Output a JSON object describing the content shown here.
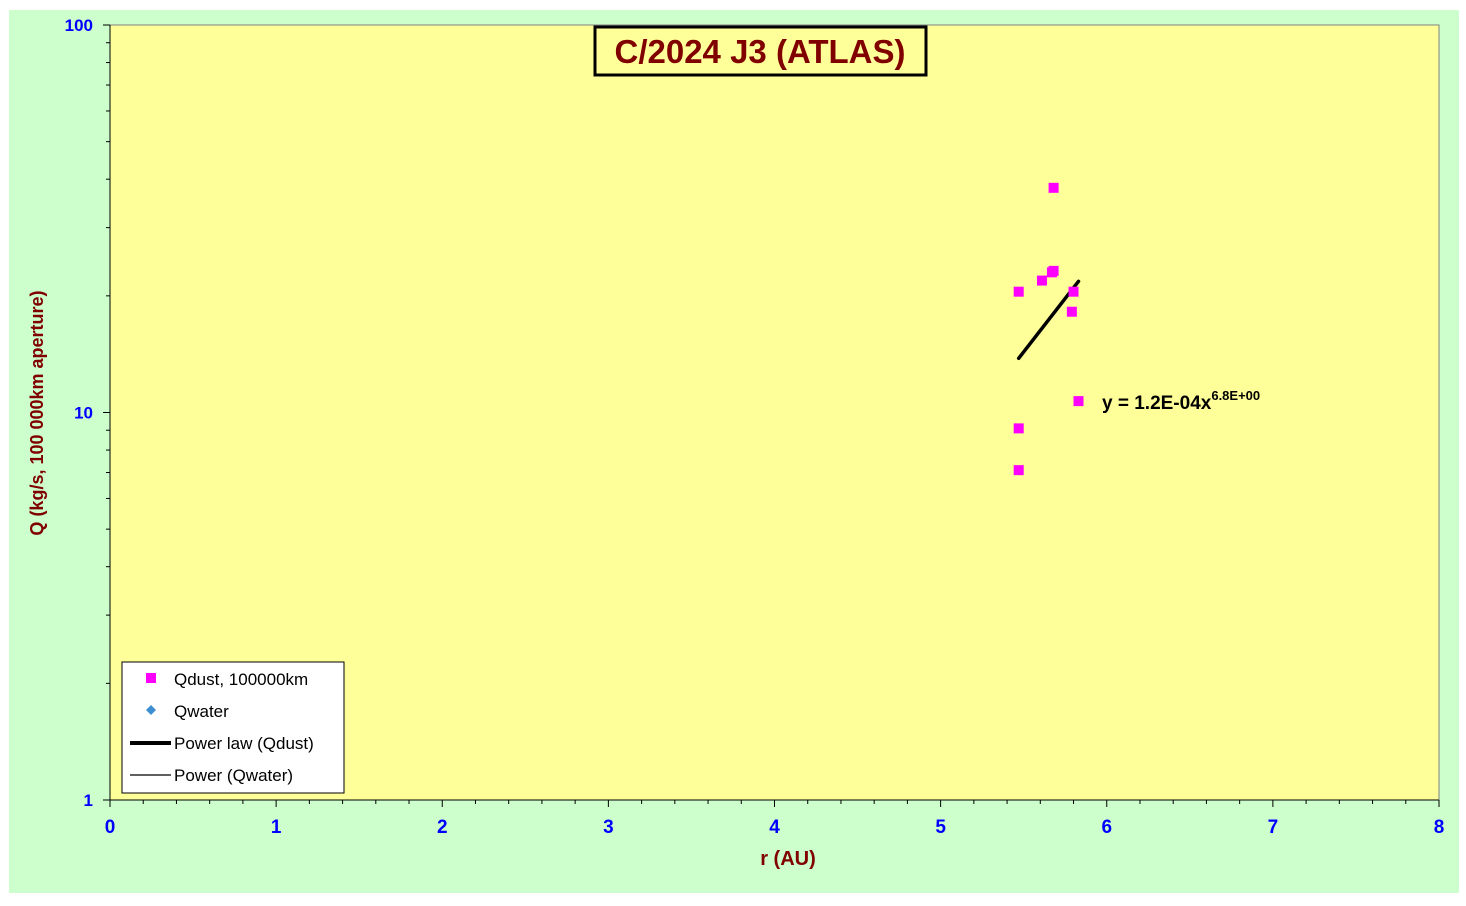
{
  "colors": {
    "outer_bg": "#ccffcc",
    "plot_bg": "#ffff99",
    "axis_text": "#0000ff",
    "label_text": "#800000",
    "dust_marker": "#ff00ff",
    "water_marker": "#3d8fd1",
    "line": "#000000"
  },
  "chart_data": {
    "type": "scatter",
    "title": "C/2024 J3 (ATLAS)",
    "xlabel": "r (AU)",
    "ylabel": "Q (kg/s, 100 000km aperture)",
    "xlim": [
      0,
      8
    ],
    "ylim": [
      1,
      100
    ],
    "yscale": "log",
    "x_ticks": [
      "0",
      "1",
      "2",
      "3",
      "4",
      "5",
      "6",
      "7",
      "8"
    ],
    "y_ticks": [
      "1",
      "10",
      "100"
    ],
    "grid": false,
    "legend_position": "bottom-left",
    "series": [
      {
        "name": "Qdust, 100000km",
        "marker": "square",
        "points": [
          [
            5.47,
            20.5
          ],
          [
            5.47,
            9.1
          ],
          [
            5.47,
            7.1
          ],
          [
            5.61,
            21.9
          ],
          [
            5.67,
            23.0
          ],
          [
            5.68,
            23.2
          ],
          [
            5.68,
            38.0
          ],
          [
            5.79,
            18.2
          ],
          [
            5.8,
            20.5
          ],
          [
            5.83,
            10.7
          ]
        ]
      },
      {
        "name": "Qwater",
        "marker": "diamond",
        "points": []
      }
    ],
    "trendlines": [
      {
        "name": "Power law (Qdust)",
        "x_range": [
          5.47,
          5.83
        ],
        "y_range": [
          13.8,
          21.8
        ],
        "width": "thick"
      },
      {
        "name": "Power (Qwater)",
        "width": "thin"
      }
    ],
    "annotation": {
      "text": "y = 1.2E-04x",
      "superscript": "6.8E+00"
    }
  }
}
